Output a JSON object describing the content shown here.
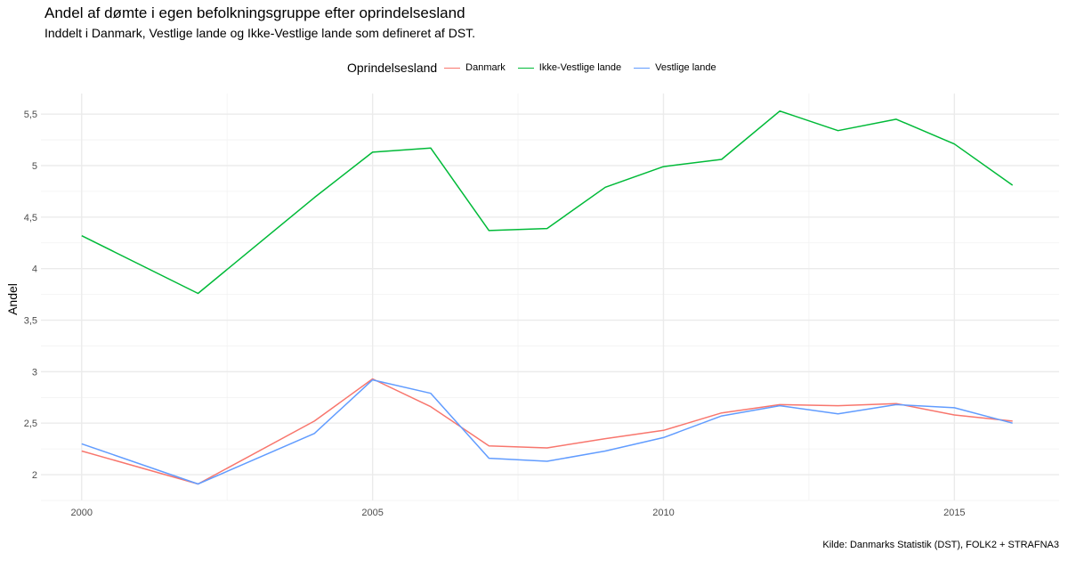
{
  "chart_data": {
    "type": "line",
    "title": "Andel af dømte i egen befolkningsgruppe efter oprindelsesland",
    "subtitle": "Inddelt i Danmark, Vestlige lande og Ikke-Vestlige lande som defineret af DST.",
    "caption": "Kilde: Danmarks Statistik (DST), FOLK2 + STRAFNA3",
    "xlabel": "",
    "ylabel": "Andel",
    "legend_title": "Oprindelsesland",
    "legend_position": "top",
    "grid": true,
    "xlim": [
      1999.3,
      2016.8
    ],
    "ylim": [
      1.75,
      5.7
    ],
    "x_ticks": [
      2000,
      2005,
      2010,
      2015
    ],
    "x_tick_labels": [
      "2000",
      "2005",
      "2010",
      "2015"
    ],
    "y_ticks": [
      2,
      2.5,
      3,
      3.5,
      4,
      4.5,
      5,
      5.5
    ],
    "y_tick_labels": [
      "2",
      "2,5",
      "3",
      "3,5",
      "4",
      "4,5",
      "5",
      "5,5"
    ],
    "series": [
      {
        "name": "Danmark",
        "color": "#F8766D",
        "x": [
          2000,
          2002,
          2004,
          2005,
          2006,
          2007,
          2008,
          2009,
          2010,
          2011,
          2012,
          2013,
          2014,
          2015,
          2016
        ],
        "y": [
          2.23,
          1.91,
          2.52,
          2.93,
          2.66,
          2.28,
          2.26,
          2.35,
          2.43,
          2.6,
          2.68,
          2.67,
          2.69,
          2.58,
          2.52
        ]
      },
      {
        "name": "Ikke-Vestlige lande",
        "color": "#00BA38",
        "x": [
          2000,
          2002,
          2004,
          2005,
          2006,
          2007,
          2008,
          2009,
          2010,
          2011,
          2012,
          2013,
          2014,
          2015,
          2016
        ],
        "y": [
          4.32,
          3.76,
          4.69,
          5.13,
          5.17,
          4.37,
          4.39,
          4.79,
          4.99,
          5.06,
          5.53,
          5.34,
          5.45,
          5.21,
          4.81
        ]
      },
      {
        "name": "Vestlige lande",
        "color": "#619CFF",
        "x": [
          2000,
          2002,
          2004,
          2005,
          2006,
          2007,
          2008,
          2009,
          2010,
          2011,
          2012,
          2013,
          2014,
          2015,
          2016
        ],
        "y": [
          2.3,
          1.91,
          2.4,
          2.92,
          2.79,
          2.16,
          2.13,
          2.23,
          2.36,
          2.57,
          2.67,
          2.59,
          2.68,
          2.65,
          2.5
        ]
      }
    ]
  }
}
